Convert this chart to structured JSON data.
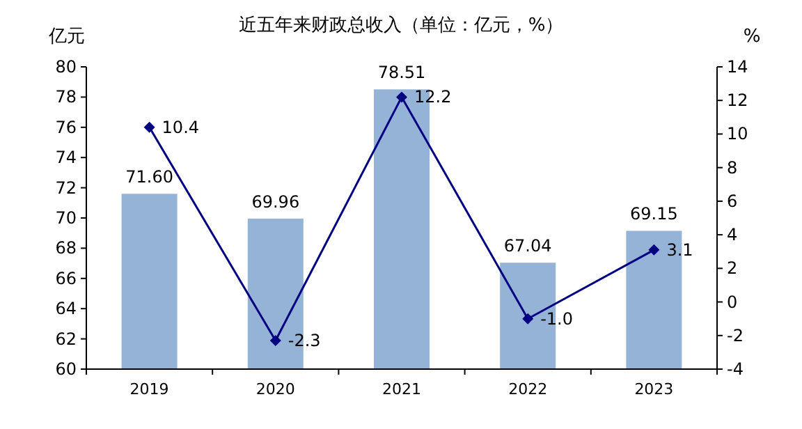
{
  "chart_data": {
    "type": "bar",
    "title": "近五年来财政总收入（单位：亿元，%）",
    "ylabel": "亿元",
    "y2label": "%",
    "categories": [
      "2019",
      "2020",
      "2021",
      "2022",
      "2023"
    ],
    "series": [
      {
        "color": "#95b3d7",
        "values": [
          71.6,
          69.96,
          78.51,
          67.04,
          69.15
        ],
        "value_labels": [
          "71.60",
          "69.96",
          "78.51",
          "67.04",
          "69.15"
        ]
      },
      {
        "type": "line",
        "axis": "y2",
        "color": "#000080",
        "marker": "diamond",
        "values": [
          10.4,
          -2.3,
          12.2,
          -1.0,
          3.1
        ],
        "value_labels": [
          "10.4",
          "-2.3",
          "12.2",
          "-1.0",
          "3.1"
        ]
      }
    ],
    "ylim": [
      60,
      80
    ],
    "yticks": [
      60,
      62,
      64,
      66,
      68,
      70,
      72,
      74,
      76,
      78,
      80
    ],
    "y2lim": [
      -4,
      14
    ],
    "y2ticks": [
      -4,
      -2,
      0,
      2,
      4,
      6,
      8,
      10,
      12,
      14
    ],
    "grid": false
  }
}
